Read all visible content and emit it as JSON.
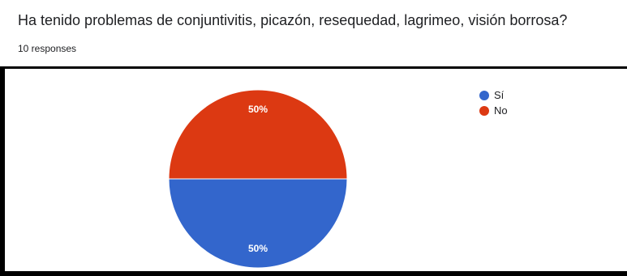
{
  "question": {
    "title": "Ha tenido problemas de conjuntivitis, picazón, resequedad, lagrimeo, visión borrosa?",
    "responses_label": "10 responses"
  },
  "chart_data": {
    "type": "pie",
    "categories": [
      "Sí",
      "No"
    ],
    "values": [
      50,
      50
    ],
    "labels": [
      "50%",
      "50%"
    ],
    "colors": [
      "#3366cc",
      "#dc3912"
    ],
    "legend_placement": "right"
  }
}
